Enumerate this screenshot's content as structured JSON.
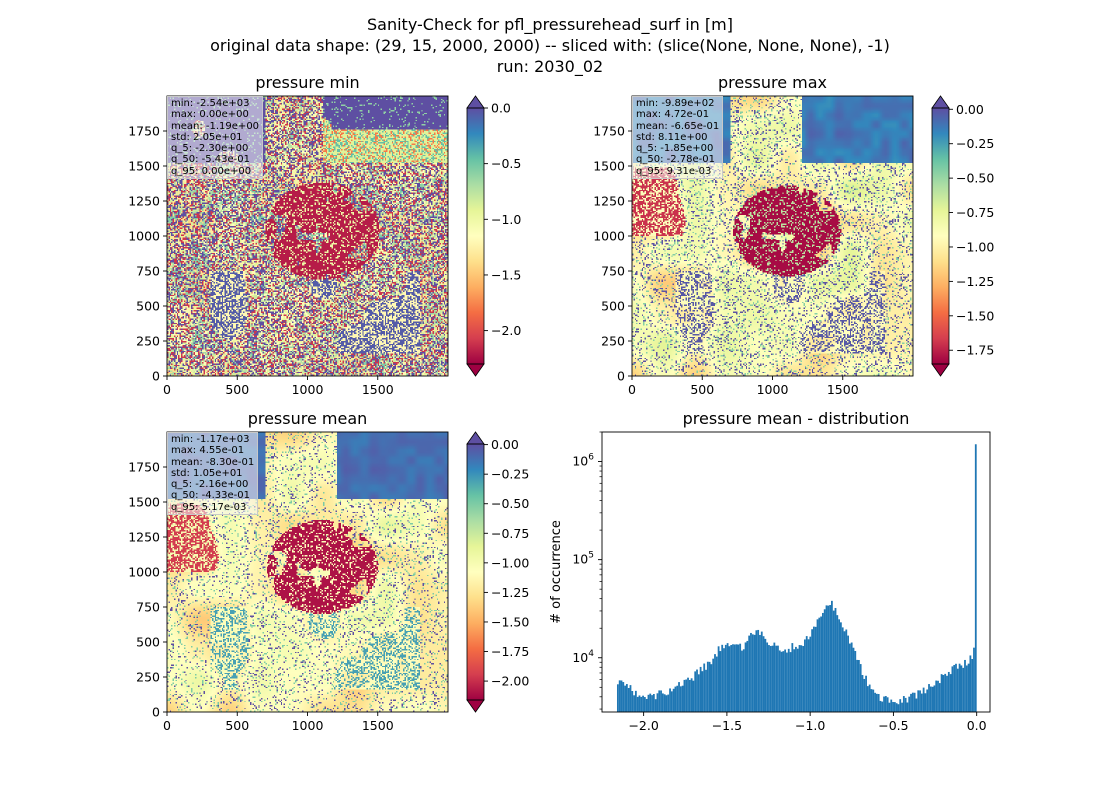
{
  "figure": {
    "title_lines": [
      "Sanity-Check for pfl_pressurehead_surf in [m]",
      "original data shape: (29, 15, 2000, 2000) -- sliced with: (slice(None, None, None), -1)",
      "run: 2030_02"
    ]
  },
  "chart_data": [
    {
      "type": "heatmap",
      "title": "pressure min",
      "colormap": "Spectral",
      "xlim": [
        0,
        2000
      ],
      "ylim": [
        0,
        2000
      ],
      "xticks": [
        "0",
        "500",
        "1000",
        "1500"
      ],
      "yticks": [
        "0",
        "250",
        "500",
        "750",
        "1000",
        "1250",
        "1500",
        "1750"
      ],
      "colorbar": {
        "min": -2.3,
        "max": 0.0,
        "extend": "both",
        "ticks": [
          "0.0",
          "−0.5",
          "−1.0",
          "−1.5",
          "−2.0"
        ],
        "tick_values": [
          0.0,
          -0.5,
          -1.0,
          -1.5,
          -2.0
        ]
      },
      "stats": [
        "min: -2.54e+03",
        "max: 0.00e+00",
        "mean: -1.19e+00",
        "std: 2.05e+01",
        "q_5: -2.30e+00",
        "q_50: -5.43e-01",
        "q_95: 0.00e+00"
      ]
    },
    {
      "type": "heatmap",
      "title": "pressure max",
      "colormap": "Spectral",
      "xlim": [
        0,
        2000
      ],
      "ylim": [
        0,
        2000
      ],
      "xticks": [
        "0",
        "500",
        "1000",
        "1500"
      ],
      "yticks": [
        "0",
        "250",
        "500",
        "750",
        "1000",
        "1250",
        "1500",
        "1750"
      ],
      "colorbar": {
        "min": -1.85,
        "max": 0.0093,
        "extend": "both",
        "ticks": [
          "0.00",
          "−0.25",
          "−0.50",
          "−0.75",
          "−1.00",
          "−1.25",
          "−1.50",
          "−1.75"
        ],
        "tick_values": [
          0.0,
          -0.25,
          -0.5,
          -0.75,
          -1.0,
          -1.25,
          -1.5,
          -1.75
        ]
      },
      "stats": [
        "min: -9.89e+02",
        "max: 4.72e-01",
        "mean: -6.65e-01",
        "std: 8.11e+00",
        "q_5: -1.85e+00",
        "q_50: -2.78e-01",
        "q_95: 9.31e-03"
      ]
    },
    {
      "type": "heatmap",
      "title": "pressure mean",
      "colormap": "Spectral",
      "xlim": [
        0,
        2000
      ],
      "ylim": [
        0,
        2000
      ],
      "xticks": [
        "0",
        "500",
        "1000",
        "1500"
      ],
      "yticks": [
        "0",
        "250",
        "500",
        "750",
        "1000",
        "1250",
        "1500",
        "1750"
      ],
      "colorbar": {
        "min": -2.16,
        "max": 0.0052,
        "extend": "both",
        "ticks": [
          "0.00",
          "−0.25",
          "−0.50",
          "−0.75",
          "−1.00",
          "−1.25",
          "−1.50",
          "−1.75",
          "−2.00"
        ],
        "tick_values": [
          0.0,
          -0.25,
          -0.5,
          -0.75,
          -1.0,
          -1.25,
          -1.5,
          -1.75,
          -2.0
        ]
      },
      "stats": [
        "min: -1.17e+03",
        "max: 4.55e-01",
        "mean: -8.30e-01",
        "std: 1.05e+01",
        "q_5: -2.16e+00",
        "q_50: -4.33e-01",
        "q_95: 5.17e-03"
      ]
    },
    {
      "type": "bar",
      "title": "pressure mean - distribution",
      "ylabel": "# of occurrence",
      "yscale": "log",
      "xlim": [
        -2.25,
        0.08
      ],
      "ylim": [
        2800,
        2000000
      ],
      "xticks": [
        "−2.0",
        "−1.5",
        "−1.0",
        "−0.5",
        "0.0"
      ],
      "xtick_values": [
        -2.0,
        -1.5,
        -1.0,
        -0.5,
        0.0
      ],
      "ytick_values": [
        10000,
        100000,
        1000000
      ],
      "bar_color": "#1f77b4",
      "profile_x": [
        -2.16,
        -2.13,
        -2.08,
        -2.0,
        -1.92,
        -1.8,
        -1.7,
        -1.6,
        -1.55,
        -1.5,
        -1.45,
        -1.4,
        -1.35,
        -1.3,
        -1.25,
        -1.2,
        -1.15,
        -1.1,
        -1.05,
        -1.0,
        -0.95,
        -0.9,
        -0.87,
        -0.84,
        -0.8,
        -0.76,
        -0.72,
        -0.68,
        -0.64,
        -0.6,
        -0.55,
        -0.5,
        -0.45,
        -0.4,
        -0.35,
        -0.3,
        -0.25,
        -0.2,
        -0.15,
        -0.1,
        -0.05,
        -0.02,
        -0.01,
        0.0
      ],
      "profile_y": [
        6000,
        5500,
        4800,
        3800,
        4200,
        5000,
        6500,
        9000,
        12000,
        13000,
        12500,
        13000,
        17000,
        18000,
        15000,
        13000,
        12000,
        13000,
        14000,
        17000,
        24000,
        33000,
        35000,
        30000,
        20000,
        15000,
        10000,
        7000,
        5000,
        4200,
        3800,
        3600,
        3700,
        3900,
        4300,
        4800,
        5500,
        6500,
        7500,
        8300,
        9500,
        11000,
        16000,
        1500000
      ]
    }
  ]
}
